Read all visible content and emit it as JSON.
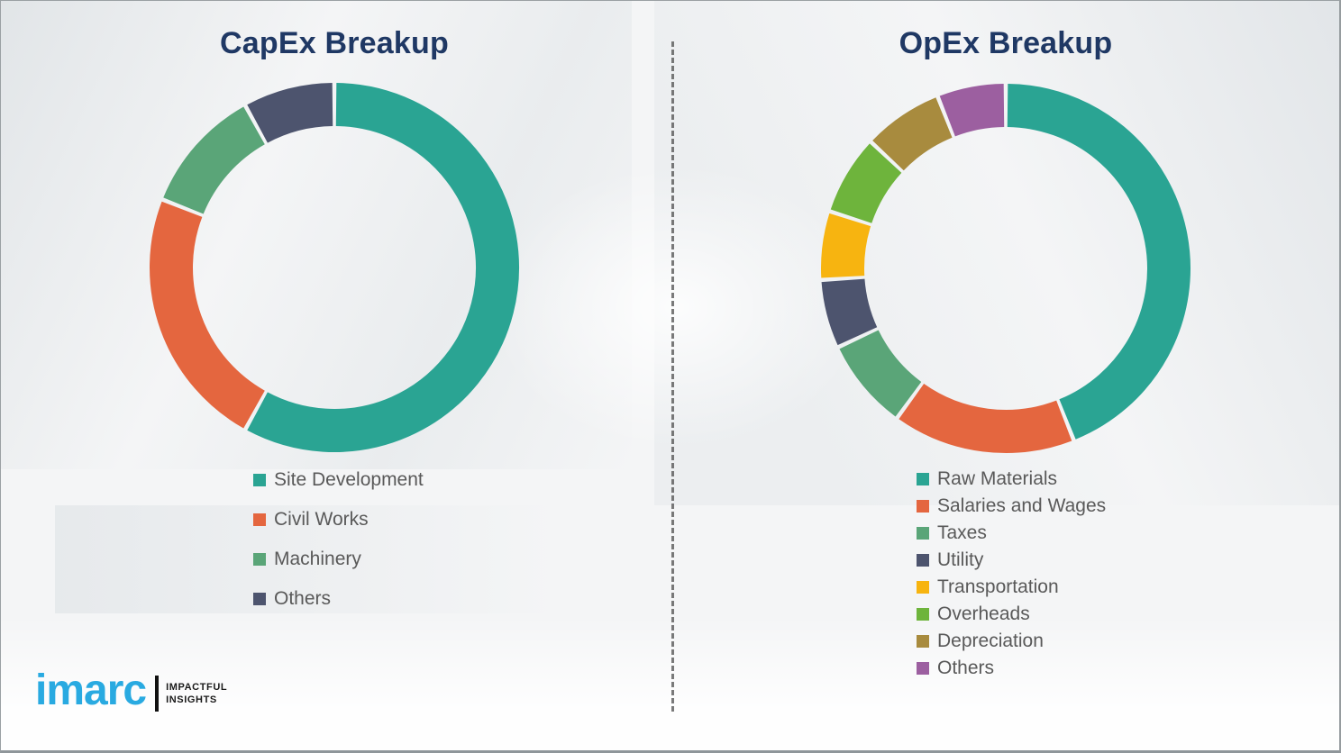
{
  "page": {
    "background_color": "#f4f5f6",
    "border_color": "#9aa0a3",
    "divider_style": "vertical-dashed",
    "divider_color": "#4f4f4f",
    "legend_text_color": "#595959",
    "title_color": "#1f3864"
  },
  "branding": {
    "logo_text": "imarc",
    "logo_color": "#29aae1",
    "tagline_line1": "IMPACTFUL",
    "tagline_line2": "INSIGHTS"
  },
  "chart_data": [
    {
      "type": "pie",
      "variant": "donut",
      "title": "CapEx Breakup",
      "title_color": "#1f3864",
      "legend_position": "below-left",
      "direction": "clockwise",
      "start_angle_deg": 0,
      "categories": [
        "Site Development",
        "Civil Works",
        "Machinery",
        "Others"
      ],
      "values": [
        58,
        23,
        11,
        8
      ],
      "unit": "percent-estimated-from-arc",
      "colors": [
        "#2aa493",
        "#e4663f",
        "#5aa578",
        "#4d546e"
      ]
    },
    {
      "type": "pie",
      "variant": "donut",
      "title": "OpEx Breakup",
      "title_color": "#1f3864",
      "legend_position": "below-left",
      "direction": "clockwise",
      "start_angle_deg": 0,
      "categories": [
        "Raw Materials",
        "Salaries and Wages",
        "Taxes",
        "Utility",
        "Transportation",
        "Overheads",
        "Depreciation",
        "Others"
      ],
      "values": [
        44,
        16,
        8,
        6,
        6,
        7,
        7,
        6
      ],
      "unit": "percent-estimated-from-arc",
      "colors": [
        "#2aa493",
        "#e4663f",
        "#5aa578",
        "#4d546e",
        "#f7b410",
        "#6eb43c",
        "#a88b3e",
        "#9c5fa0"
      ]
    }
  ]
}
